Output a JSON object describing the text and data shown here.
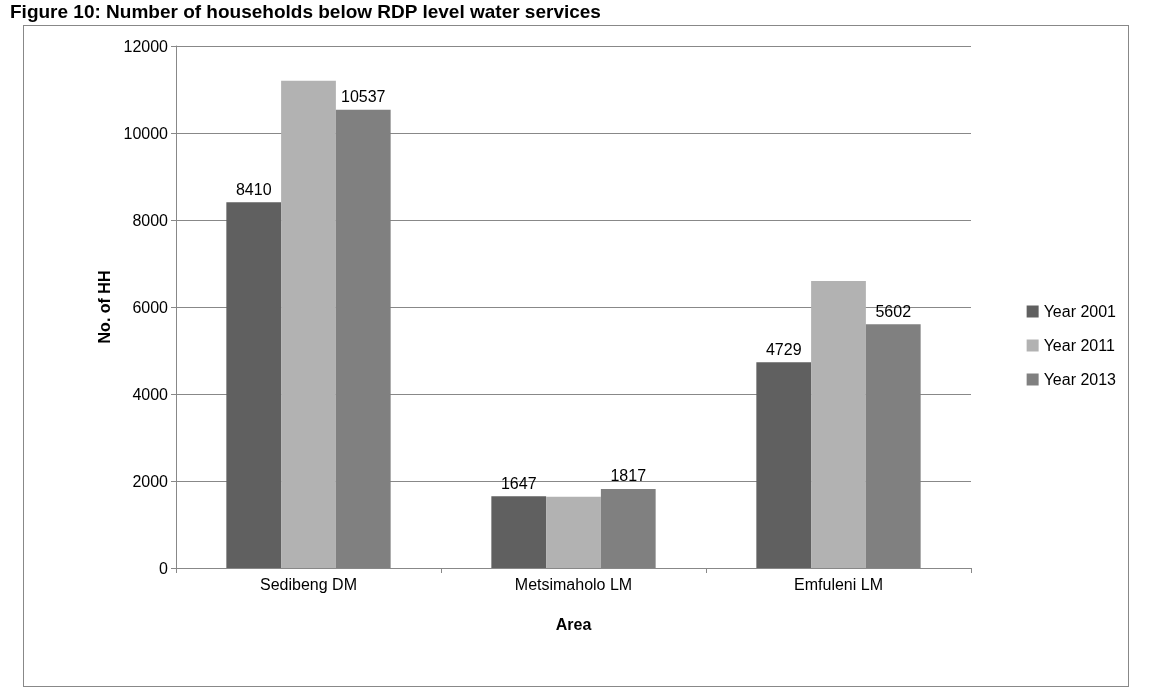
{
  "chart_data": {
    "type": "bar",
    "title": "Figure 10: Number of households below RDP level water services",
    "xlabel": "Area",
    "ylabel": "No. of HH",
    "categories": [
      "Sedibeng DM",
      "Metsimaholo LM",
      "Emfuleni LM"
    ],
    "series": [
      {
        "name": "Year 2001",
        "color": "#606060",
        "values": [
          8410,
          1647,
          4729
        ],
        "value_labels": [
          "8410",
          "1647",
          "4729"
        ]
      },
      {
        "name": "Year 2011",
        "color": "#b2b2b2",
        "values": [
          11200,
          1640,
          6600
        ],
        "value_labels": [
          null,
          null,
          null
        ]
      },
      {
        "name": "Year 2013",
        "color": "#808080",
        "values": [
          10537,
          1817,
          5602
        ],
        "value_labels": [
          "10537",
          "1817",
          "5602"
        ]
      }
    ],
    "ylim": [
      0,
      12000
    ],
    "yticks": [
      0,
      2000,
      4000,
      6000,
      8000,
      10000,
      12000
    ],
    "grid": "y",
    "legend": "right"
  }
}
